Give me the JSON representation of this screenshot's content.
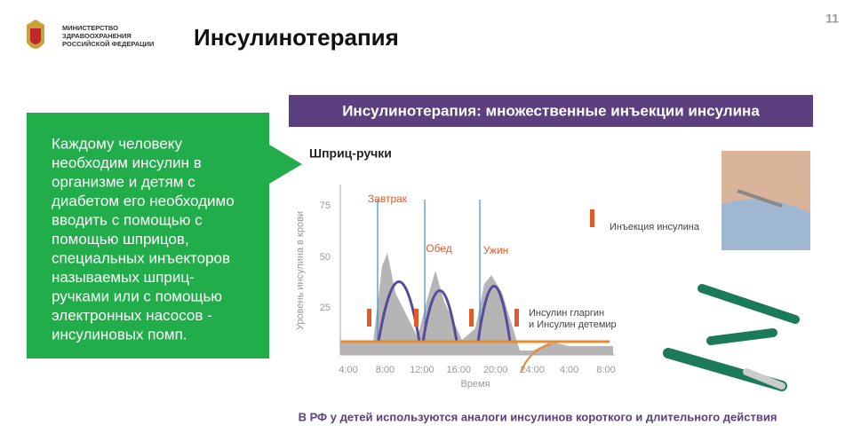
{
  "header": {
    "ministry": [
      "МИНИСТЕРСТВО",
      "ЗДРАВООХРАНЕНИЯ",
      "РОССИЙСКОЙ ФЕДЕРАЦИИ"
    ],
    "title": "Инсулинотерапия",
    "page_number": "11"
  },
  "callout": {
    "lines": [
      "Каждому человеку",
      "необходим инсулин в",
      "организме и детям с",
      "диабетом его необходимо",
      "вводить с помощью с",
      "помощью шприцов,",
      "специальных инъекторов",
      "называемых шприц-",
      "ручками или с помощью",
      "электронных насосов -",
      "инсулиновых помп."
    ]
  },
  "panel": {
    "title": "Инсулинотерапия: множественные инъекции инсулина",
    "subtitle": "Шприц-ручки",
    "diagram": {
      "y_label": "Уровень инсулина в крови",
      "x_label": "Время",
      "y_ticks": [
        "75",
        "50",
        "25"
      ],
      "x_ticks": [
        "4:00",
        "8:00",
        "12:00",
        "16:00",
        "20:00",
        "24:00",
        "4:00",
        "8:00"
      ],
      "meals": [
        "Завтрак",
        "Обед",
        "Ужин"
      ],
      "injection_legend": "Инъекция инсулина",
      "basal_legend": [
        "Инсулин гларгин",
        "и Инсулин детемир"
      ]
    }
  },
  "footer": "В РФ у детей используются аналоги инсулинов короткого  и длительного действия"
}
